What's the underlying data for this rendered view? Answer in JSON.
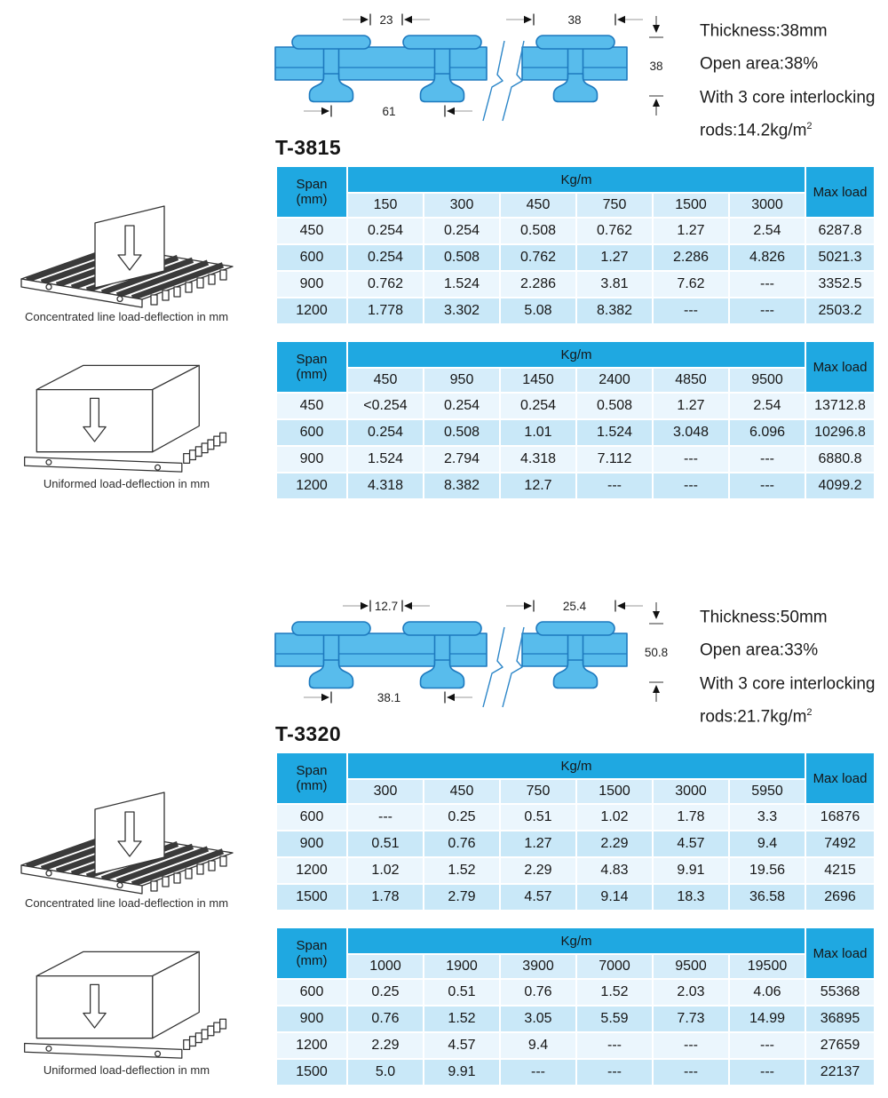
{
  "colors": {
    "table_header_blue": "#1FA8E1",
    "table_subheader_blue": "#D6EDFA",
    "table_row_light": "#EBF6FD",
    "table_row_shaded": "#C9E8F8",
    "diagram_fill_blue": "#58BCEC",
    "diagram_outline_blue": "#1D79BE"
  },
  "sections": [
    {
      "model": "T-3815",
      "diagram": {
        "pitch_small": "23",
        "pitch_large": "38",
        "pitch_bottom": "61",
        "height": "38"
      },
      "specs": [
        {
          "text": "Thickness:38mm"
        },
        {
          "text": "Open area:38%"
        },
        {
          "text": "With 3 core interlocking"
        },
        {
          "text": "rods:14.2kg/m",
          "sup": "2"
        }
      ],
      "illustrations": [
        {
          "caption": "Concentrated line load-deflection in mm"
        },
        {
          "caption": "Uniformed load-deflection in mm"
        }
      ],
      "tables": [
        {
          "span_header": "Span\n(mm)",
          "group_header": "Kg/m",
          "max_load_header": "Max load",
          "load_columns": [
            "150",
            "300",
            "450",
            "750",
            "1500",
            "3000"
          ],
          "rows": [
            {
              "span": "450",
              "values": [
                "0.254",
                "0.254",
                "0.508",
                "0.762",
                "1.27",
                "2.54"
              ],
              "max_load": "6287.8"
            },
            {
              "span": "600",
              "values": [
                "0.254",
                "0.508",
                "0.762",
                "1.27",
                "2.286",
                "4.826"
              ],
              "max_load": "5021.3"
            },
            {
              "span": "900",
              "values": [
                "0.762",
                "1.524",
                "2.286",
                "3.81",
                "7.62",
                "---"
              ],
              "max_load": "3352.5"
            },
            {
              "span": "1200",
              "values": [
                "1.778",
                "3.302",
                "5.08",
                "8.382",
                "---",
                "---"
              ],
              "max_load": "2503.2"
            }
          ]
        },
        {
          "span_header": "Span\n(mm)",
          "group_header": "Kg/m",
          "max_load_header": "Max load",
          "load_columns": [
            "450",
            "950",
            "1450",
            "2400",
            "4850",
            "9500"
          ],
          "rows": [
            {
              "span": "450",
              "values": [
                "<0.254",
                "0.254",
                "0.254",
                "0.508",
                "1.27",
                "2.54"
              ],
              "max_load": "13712.8"
            },
            {
              "span": "600",
              "values": [
                "0.254",
                "0.508",
                "1.01",
                "1.524",
                "3.048",
                "6.096"
              ],
              "max_load": "10296.8"
            },
            {
              "span": "900",
              "values": [
                "1.524",
                "2.794",
                "4.318",
                "7.112",
                "---",
                "---"
              ],
              "max_load": "6880.8"
            },
            {
              "span": "1200",
              "values": [
                "4.318",
                "8.382",
                "12.7",
                "---",
                "---",
                "---"
              ],
              "max_load": "4099.2"
            }
          ]
        }
      ]
    },
    {
      "model": "T-3320",
      "diagram": {
        "pitch_small": "12.7",
        "pitch_large": "25.4",
        "pitch_bottom": "38.1",
        "height": "50.8"
      },
      "specs": [
        {
          "text": "Thickness:50mm"
        },
        {
          "text": "Open area:33%"
        },
        {
          "text": "With 3 core interlocking"
        },
        {
          "text": "rods:21.7kg/m",
          "sup": "2"
        }
      ],
      "illustrations": [
        {
          "caption": "Concentrated line load-deflection in mm"
        },
        {
          "caption": "Uniformed load-deflection in mm"
        }
      ],
      "tables": [
        {
          "span_header": "Span\n(mm)",
          "group_header": "Kg/m",
          "max_load_header": "Max load",
          "load_columns": [
            "300",
            "450",
            "750",
            "1500",
            "3000",
            "5950"
          ],
          "rows": [
            {
              "span": "600",
              "values": [
                "---",
                "0.25",
                "0.51",
                "1.02",
                "1.78",
                "3.3"
              ],
              "max_load": "16876"
            },
            {
              "span": "900",
              "values": [
                "0.51",
                "0.76",
                "1.27",
                "2.29",
                "4.57",
                "9.4"
              ],
              "max_load": "7492"
            },
            {
              "span": "1200",
              "values": [
                "1.02",
                "1.52",
                "2.29",
                "4.83",
                "9.91",
                "19.56"
              ],
              "max_load": "4215"
            },
            {
              "span": "1500",
              "values": [
                "1.78",
                "2.79",
                "4.57",
                "9.14",
                "18.3",
                "36.58"
              ],
              "max_load": "2696"
            }
          ]
        },
        {
          "span_header": "Span\n(mm)",
          "group_header": "Kg/m",
          "max_load_header": "Max load",
          "load_columns": [
            "1000",
            "1900",
            "3900",
            "7000",
            "9500",
            "19500"
          ],
          "rows": [
            {
              "span": "600",
              "values": [
                "0.25",
                "0.51",
                "0.76",
                "1.52",
                "2.03",
                "4.06"
              ],
              "max_load": "55368"
            },
            {
              "span": "900",
              "values": [
                "0.76",
                "1.52",
                "3.05",
                "5.59",
                "7.73",
                "14.99"
              ],
              "max_load": "36895"
            },
            {
              "span": "1200",
              "values": [
                "2.29",
                "4.57",
                "9.4",
                "---",
                "---",
                "---"
              ],
              "max_load": "27659"
            },
            {
              "span": "1500",
              "values": [
                "5.0",
                "9.91",
                "---",
                "---",
                "---",
                "---"
              ],
              "max_load": "22137"
            }
          ]
        }
      ]
    }
  ]
}
